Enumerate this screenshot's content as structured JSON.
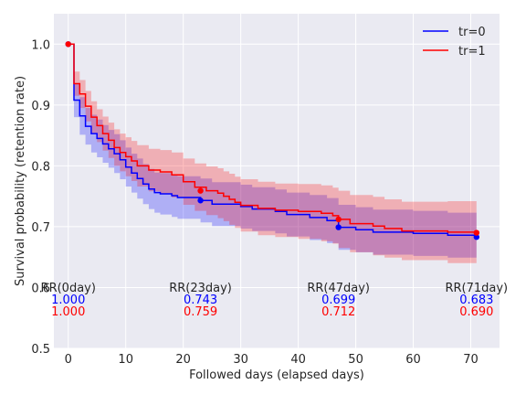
{
  "chart_data": {
    "type": "line",
    "step": true,
    "xlabel": "Followed days (elapsed days)",
    "ylabel": "Survival probability (retention rate)",
    "xlim": [
      -2.5,
      75
    ],
    "ylim": [
      0.5,
      1.05
    ],
    "xticks": [
      0,
      10,
      20,
      30,
      40,
      50,
      60,
      70
    ],
    "yticks": [
      0.5,
      0.6,
      0.7,
      0.8,
      0.9,
      1.0
    ],
    "ytick_labels": [
      "0.5",
      "0.6",
      "0.7",
      "0.8",
      "0.9",
      "1.0"
    ],
    "grid": true,
    "legend_position": "top-right",
    "colors": {
      "tr0": "#0000ff",
      "tr1": "#ff0000",
      "background": "#eaeaf2",
      "grid": "#ffffff"
    },
    "series": [
      {
        "name": "tr=0",
        "color": "#0000ff",
        "x": [
          0,
          1,
          2,
          3,
          4,
          5,
          6,
          7,
          8,
          9,
          10,
          11,
          12,
          13,
          14,
          15,
          16,
          18,
          19,
          23,
          25,
          30,
          32,
          36,
          38,
          42,
          45,
          47,
          50,
          53,
          60,
          66,
          71
        ],
        "y": [
          1.0,
          0.908,
          0.882,
          0.865,
          0.853,
          0.845,
          0.836,
          0.828,
          0.82,
          0.81,
          0.798,
          0.788,
          0.779,
          0.77,
          0.762,
          0.756,
          0.754,
          0.751,
          0.748,
          0.743,
          0.737,
          0.733,
          0.729,
          0.725,
          0.72,
          0.715,
          0.71,
          0.699,
          0.695,
          0.691,
          0.689,
          0.686,
          0.683
        ],
        "lower": [
          1.0,
          0.88,
          0.851,
          0.835,
          0.822,
          0.814,
          0.805,
          0.797,
          0.788,
          0.778,
          0.766,
          0.756,
          0.746,
          0.737,
          0.729,
          0.723,
          0.72,
          0.716,
          0.713,
          0.707,
          0.701,
          0.697,
          0.693,
          0.689,
          0.684,
          0.678,
          0.673,
          0.662,
          0.658,
          0.654,
          0.652,
          0.649,
          0.645
        ],
        "upper": [
          1.0,
          0.936,
          0.913,
          0.895,
          0.884,
          0.876,
          0.867,
          0.859,
          0.852,
          0.842,
          0.83,
          0.82,
          0.812,
          0.803,
          0.795,
          0.789,
          0.788,
          0.786,
          0.783,
          0.779,
          0.773,
          0.769,
          0.765,
          0.761,
          0.756,
          0.752,
          0.747,
          0.736,
          0.732,
          0.728,
          0.726,
          0.723,
          0.721
        ],
        "markers": [
          [
            0,
            1.0
          ],
          [
            23,
            0.743
          ],
          [
            47,
            0.699
          ],
          [
            71,
            0.683
          ]
        ]
      },
      {
        "name": "tr=1",
        "color": "#ff0000",
        "x": [
          0,
          1,
          2,
          3,
          4,
          5,
          6,
          7,
          8,
          9,
          10,
          11,
          12,
          14,
          16,
          18,
          20,
          22,
          24,
          26,
          27,
          28,
          29,
          30,
          33,
          36,
          40,
          44,
          46,
          47,
          49,
          53,
          55,
          58,
          66,
          71
        ],
        "y": [
          1.0,
          0.935,
          0.918,
          0.898,
          0.88,
          0.866,
          0.853,
          0.842,
          0.83,
          0.822,
          0.815,
          0.808,
          0.8,
          0.793,
          0.79,
          0.785,
          0.774,
          0.765,
          0.759,
          0.755,
          0.75,
          0.745,
          0.74,
          0.735,
          0.73,
          0.727,
          0.725,
          0.722,
          0.718,
          0.712,
          0.705,
          0.701,
          0.697,
          0.693,
          0.691,
          0.69
        ],
        "lower": [
          1.0,
          0.915,
          0.895,
          0.873,
          0.854,
          0.839,
          0.825,
          0.813,
          0.8,
          0.791,
          0.783,
          0.775,
          0.766,
          0.758,
          0.754,
          0.748,
          0.736,
          0.726,
          0.719,
          0.714,
          0.709,
          0.703,
          0.698,
          0.692,
          0.686,
          0.683,
          0.68,
          0.676,
          0.672,
          0.665,
          0.658,
          0.653,
          0.649,
          0.645,
          0.64,
          0.655
        ],
        "upper": [
          1.0,
          0.955,
          0.941,
          0.923,
          0.906,
          0.893,
          0.881,
          0.871,
          0.86,
          0.853,
          0.847,
          0.841,
          0.834,
          0.828,
          0.826,
          0.822,
          0.812,
          0.804,
          0.799,
          0.796,
          0.791,
          0.787,
          0.782,
          0.778,
          0.774,
          0.771,
          0.77,
          0.768,
          0.764,
          0.759,
          0.752,
          0.749,
          0.745,
          0.741,
          0.742,
          0.725
        ],
        "markers": [
          [
            0,
            1.0
          ],
          [
            23,
            0.759
          ],
          [
            47,
            0.712
          ],
          [
            71,
            0.69
          ]
        ]
      }
    ],
    "annotations": [
      {
        "x": 0,
        "label": "RR(0day)",
        "tr0": "1.000",
        "tr1": "1.000"
      },
      {
        "x": 23,
        "label": "RR(23day)",
        "tr0": "0.743",
        "tr1": "0.759"
      },
      {
        "x": 47,
        "label": "RR(47day)",
        "tr0": "0.699",
        "tr1": "0.712"
      },
      {
        "x": 71,
        "label": "RR(71day)",
        "tr0": "0.683",
        "tr1": "0.690"
      }
    ]
  }
}
